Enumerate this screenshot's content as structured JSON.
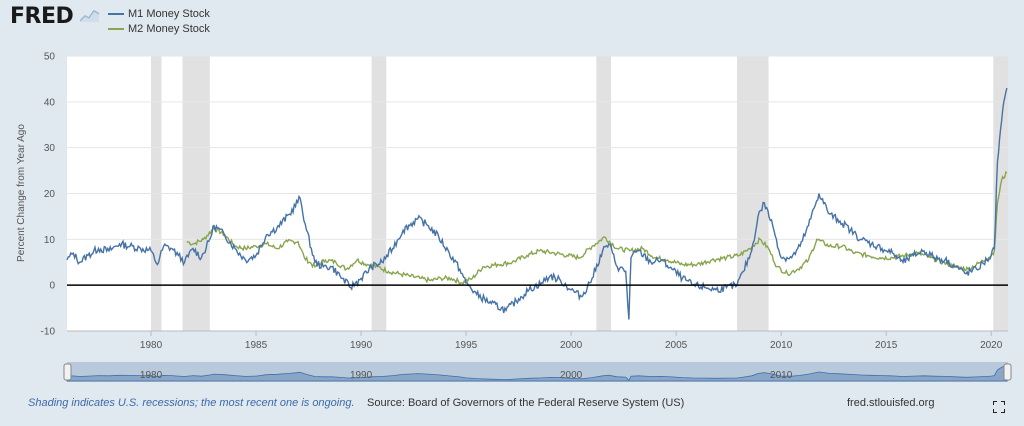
{
  "header": {
    "logo": "FRED"
  },
  "legend": [
    {
      "name": "M1 Money Stock",
      "color": "#4572a7"
    },
    {
      "name": "M2 Money Stock",
      "color": "#89a54e"
    }
  ],
  "footer": {
    "recession_note": "Shading indicates U.S. recessions; the most recent one is ongoing.",
    "source": "Source: Board of Governors of the Federal Reserve System (US)",
    "url": "fred.stlouisfed.org"
  },
  "chart_data": {
    "type": "line",
    "title": "",
    "xlabel": "",
    "ylabel": "Percent Change from Year Ago",
    "xlim": [
      1976,
      2020.8
    ],
    "ylim": [
      -10,
      50
    ],
    "yticks": [
      -10,
      0,
      10,
      20,
      30,
      40,
      50
    ],
    "xticks": [
      1980,
      1985,
      1990,
      1995,
      2000,
      2005,
      2010,
      2015,
      2020
    ],
    "grid": "horizontal",
    "recessions": [
      [
        1980.0,
        1980.5
      ],
      [
        1981.5,
        1982.8
      ],
      [
        1990.5,
        1991.2
      ],
      [
        2001.2,
        2001.9
      ],
      [
        2007.9,
        2009.4
      ],
      [
        2020.1,
        2020.8
      ]
    ],
    "navigator_labels": [
      "1980",
      "1990",
      "2000",
      "2010"
    ],
    "series": [
      {
        "name": "M1 Money Stock",
        "color": "#4572a7",
        "points": [
          [
            1976.0,
            5.5
          ],
          [
            1976.3,
            7.0
          ],
          [
            1976.6,
            5.0
          ],
          [
            1977.0,
            6.5
          ],
          [
            1977.5,
            8.0
          ],
          [
            1978.0,
            7.5
          ],
          [
            1978.5,
            9.0
          ],
          [
            1979.0,
            8.5
          ],
          [
            1979.5,
            8.0
          ],
          [
            1980.0,
            7.5
          ],
          [
            1980.3,
            4.5
          ],
          [
            1980.6,
            8.5
          ],
          [
            1981.0,
            8.0
          ],
          [
            1981.3,
            6.5
          ],
          [
            1981.6,
            5.0
          ],
          [
            1982.0,
            8.0
          ],
          [
            1982.4,
            6.0
          ],
          [
            1982.8,
            10.0
          ],
          [
            1983.0,
            13.0
          ],
          [
            1983.5,
            11.0
          ],
          [
            1984.0,
            8.0
          ],
          [
            1984.5,
            5.5
          ],
          [
            1985.0,
            6.5
          ],
          [
            1985.5,
            11.0
          ],
          [
            1986.0,
            12.5
          ],
          [
            1986.6,
            15.5
          ],
          [
            1987.1,
            19.0
          ],
          [
            1987.4,
            12.0
          ],
          [
            1987.8,
            5.0
          ],
          [
            1988.2,
            4.0
          ],
          [
            1988.6,
            4.0
          ],
          [
            1989.0,
            2.0
          ],
          [
            1989.5,
            -0.5
          ],
          [
            1990.0,
            1.5
          ],
          [
            1990.5,
            4.0
          ],
          [
            1991.0,
            5.0
          ],
          [
            1991.5,
            8.0
          ],
          [
            1992.0,
            12.0
          ],
          [
            1992.7,
            14.5
          ],
          [
            1993.2,
            13.0
          ],
          [
            1993.7,
            10.5
          ],
          [
            1994.2,
            7.0
          ],
          [
            1994.7,
            3.5
          ],
          [
            1995.0,
            0.5
          ],
          [
            1995.5,
            -2.0
          ],
          [
            1996.2,
            -4.0
          ],
          [
            1996.9,
            -5.5
          ],
          [
            1997.5,
            -3.0
          ],
          [
            1998.0,
            -1.0
          ],
          [
            1998.6,
            0.5
          ],
          [
            1999.0,
            2.0
          ],
          [
            1999.5,
            1.0
          ],
          [
            2000.0,
            -1.0
          ],
          [
            2000.5,
            -2.5
          ],
          [
            2001.0,
            1.5
          ],
          [
            2001.5,
            7.5
          ],
          [
            2001.8,
            9.0
          ],
          [
            2002.2,
            4.0
          ],
          [
            2002.6,
            3.0
          ],
          [
            2002.75,
            -7.5
          ],
          [
            2002.85,
            6.0
          ],
          [
            2003.2,
            7.5
          ],
          [
            2003.8,
            5.0
          ],
          [
            2004.3,
            5.5
          ],
          [
            2004.8,
            3.5
          ],
          [
            2005.3,
            1.5
          ],
          [
            2005.8,
            0.0
          ],
          [
            2006.4,
            -0.5
          ],
          [
            2006.9,
            -1.0
          ],
          [
            2007.4,
            -0.5
          ],
          [
            2007.9,
            0.0
          ],
          [
            2008.2,
            3.0
          ],
          [
            2008.6,
            7.5
          ],
          [
            2008.9,
            15.0
          ],
          [
            2009.2,
            18.0
          ],
          [
            2009.6,
            13.0
          ],
          [
            2010.0,
            6.0
          ],
          [
            2010.5,
            6.0
          ],
          [
            2010.9,
            8.5
          ],
          [
            2011.3,
            13.0
          ],
          [
            2011.8,
            20.0
          ],
          [
            2012.3,
            15.5
          ],
          [
            2012.8,
            14.0
          ],
          [
            2013.3,
            12.0
          ],
          [
            2013.8,
            10.0
          ],
          [
            2014.3,
            9.0
          ],
          [
            2014.8,
            8.0
          ],
          [
            2015.3,
            7.0
          ],
          [
            2015.8,
            5.0
          ],
          [
            2016.3,
            6.5
          ],
          [
            2016.8,
            7.5
          ],
          [
            2017.3,
            6.0
          ],
          [
            2017.8,
            5.5
          ],
          [
            2018.3,
            4.0
          ],
          [
            2018.8,
            2.5
          ],
          [
            2019.3,
            3.5
          ],
          [
            2019.8,
            5.5
          ],
          [
            2020.0,
            6.5
          ],
          [
            2020.15,
            8.0
          ],
          [
            2020.3,
            27.0
          ],
          [
            2020.5,
            36.0
          ],
          [
            2020.65,
            41.0
          ],
          [
            2020.75,
            43.0
          ]
        ]
      },
      {
        "name": "M2 Money Stock",
        "color": "#89a54e",
        "points": [
          [
            1981.7,
            9.5
          ],
          [
            1982.0,
            9.0
          ],
          [
            1982.5,
            10.0
          ],
          [
            1983.0,
            12.5
          ],
          [
            1983.5,
            11.0
          ],
          [
            1984.0,
            8.5
          ],
          [
            1984.5,
            8.0
          ],
          [
            1985.0,
            8.5
          ],
          [
            1985.5,
            9.0
          ],
          [
            1986.0,
            8.0
          ],
          [
            1986.5,
            9.5
          ],
          [
            1987.0,
            9.5
          ],
          [
            1987.3,
            6.0
          ],
          [
            1987.8,
            4.0
          ],
          [
            1988.3,
            5.5
          ],
          [
            1988.8,
            5.0
          ],
          [
            1989.3,
            3.5
          ],
          [
            1989.8,
            5.5
          ],
          [
            1990.3,
            4.5
          ],
          [
            1990.8,
            4.0
          ],
          [
            1991.3,
            3.0
          ],
          [
            1991.8,
            2.5
          ],
          [
            1992.3,
            2.0
          ],
          [
            1992.8,
            1.5
          ],
          [
            1993.3,
            1.0
          ],
          [
            1993.8,
            1.5
          ],
          [
            1994.3,
            1.5
          ],
          [
            1994.8,
            0.5
          ],
          [
            1995.3,
            1.5
          ],
          [
            1995.8,
            4.0
          ],
          [
            1996.5,
            4.5
          ],
          [
            1997.2,
            5.0
          ],
          [
            1997.9,
            6.5
          ],
          [
            1998.5,
            7.5
          ],
          [
            1999.2,
            7.0
          ],
          [
            1999.8,
            6.5
          ],
          [
            2000.4,
            6.0
          ],
          [
            2001.0,
            8.5
          ],
          [
            2001.6,
            10.5
          ],
          [
            2002.2,
            8.0
          ],
          [
            2002.8,
            7.5
          ],
          [
            2003.4,
            8.0
          ],
          [
            2004.0,
            6.0
          ],
          [
            2004.6,
            5.5
          ],
          [
            2005.3,
            4.5
          ],
          [
            2006.0,
            4.5
          ],
          [
            2006.7,
            5.5
          ],
          [
            2007.4,
            6.0
          ],
          [
            2008.0,
            6.5
          ],
          [
            2008.5,
            8.0
          ],
          [
            2009.0,
            10.0
          ],
          [
            2009.4,
            8.0
          ],
          [
            2009.8,
            4.0
          ],
          [
            2010.3,
            2.5
          ],
          [
            2010.8,
            3.5
          ],
          [
            2011.3,
            5.5
          ],
          [
            2011.7,
            10.0
          ],
          [
            2012.3,
            8.5
          ],
          [
            2012.9,
            8.5
          ],
          [
            2013.5,
            7.0
          ],
          [
            2014.1,
            6.5
          ],
          [
            2014.7,
            6.0
          ],
          [
            2015.3,
            6.0
          ],
          [
            2015.9,
            6.5
          ],
          [
            2016.5,
            7.0
          ],
          [
            2017.1,
            6.0
          ],
          [
            2017.7,
            5.0
          ],
          [
            2018.3,
            4.0
          ],
          [
            2018.9,
            3.5
          ],
          [
            2019.5,
            5.0
          ],
          [
            2020.0,
            6.5
          ],
          [
            2020.15,
            7.5
          ],
          [
            2020.3,
            18.0
          ],
          [
            2020.5,
            23.0
          ],
          [
            2020.75,
            24.5
          ]
        ]
      }
    ]
  }
}
